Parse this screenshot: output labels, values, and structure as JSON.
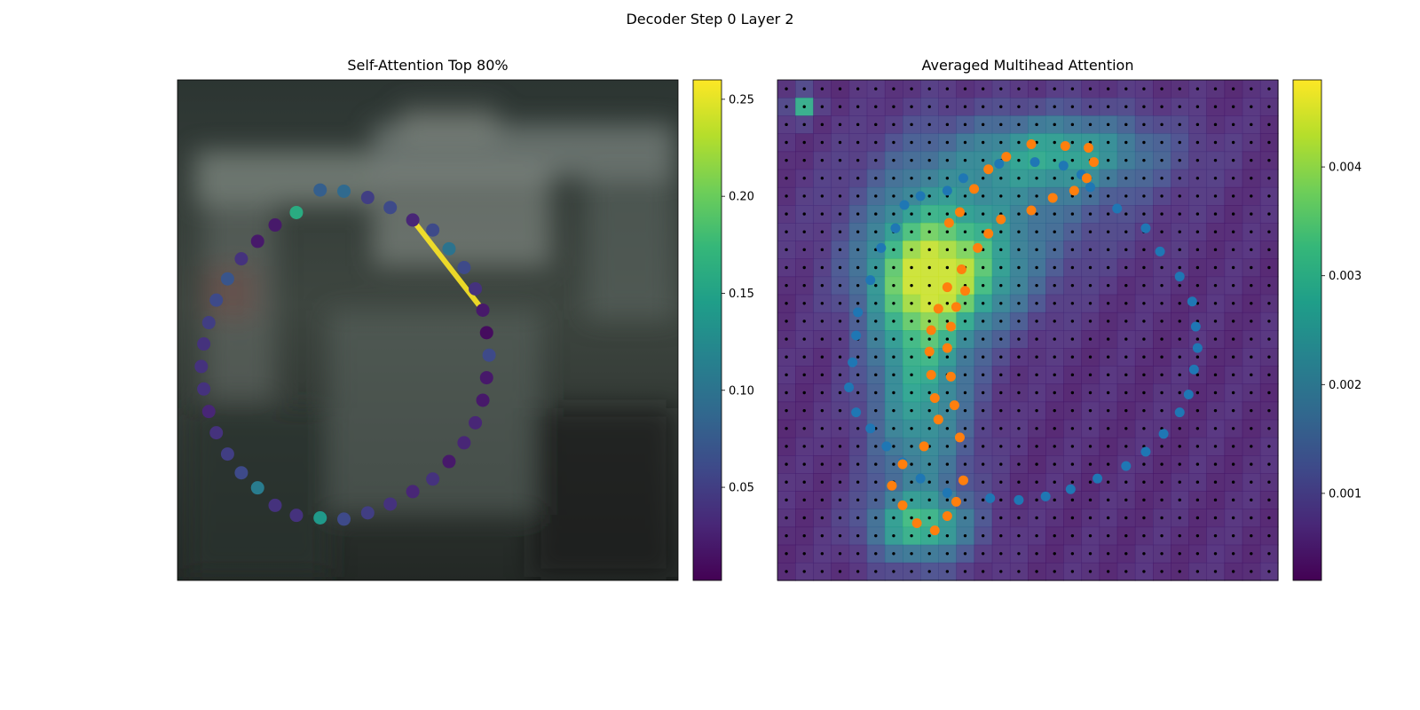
{
  "figure": {
    "title": "Decoder Step 0 Layer 2"
  },
  "colors": {
    "viridis": [
      "#440154",
      "#482777",
      "#3e4989",
      "#31688e",
      "#26828e",
      "#1f9e89",
      "#35b779",
      "#6ece58",
      "#b5de2b",
      "#fde725"
    ],
    "series_blue": "#1f77b4",
    "series_orange": "#ff7f0e",
    "grid_dot": "#000000"
  },
  "chart_data": [
    {
      "type": "scatter",
      "title": "Self-Attention Top 80%",
      "background": "blurred image (street scene)",
      "colormap": "viridis",
      "colorbar": {
        "range": [
          0.002,
          0.26
        ],
        "ticks": [
          0.05,
          0.1,
          0.15,
          0.2,
          0.25
        ],
        "tick_labels": [
          "0.05",
          "0.10",
          "0.15",
          "0.20",
          "0.25"
        ]
      },
      "highlight_segment": {
        "from_index": 9,
        "to_index": 4,
        "color": "#fde725"
      },
      "points": [
        {
          "x": 5.7,
          "y": 4.4,
          "v": 0.08
        },
        {
          "x": 6.65,
          "y": 4.45,
          "v": 0.09
        },
        {
          "x": 7.6,
          "y": 4.7,
          "v": 0.05
        },
        {
          "x": 8.5,
          "y": 5.1,
          "v": 0.06
        },
        {
          "x": 9.4,
          "y": 5.6,
          "v": 0.03
        },
        {
          "x": 10.2,
          "y": 6.0,
          "v": 0.06
        },
        {
          "x": 10.85,
          "y": 6.75,
          "v": 0.1
        },
        {
          "x": 11.45,
          "y": 7.5,
          "v": 0.06
        },
        {
          "x": 11.9,
          "y": 8.35,
          "v": 0.04
        },
        {
          "x": 12.2,
          "y": 9.2,
          "v": 0.02
        },
        {
          "x": 12.35,
          "y": 10.1,
          "v": 0.01
        },
        {
          "x": 12.45,
          "y": 11.0,
          "v": 0.06
        },
        {
          "x": 12.35,
          "y": 11.9,
          "v": 0.02
        },
        {
          "x": 12.2,
          "y": 12.8,
          "v": 0.02
        },
        {
          "x": 11.9,
          "y": 13.7,
          "v": 0.03
        },
        {
          "x": 11.45,
          "y": 14.5,
          "v": 0.03
        },
        {
          "x": 10.85,
          "y": 15.25,
          "v": 0.02
        },
        {
          "x": 10.2,
          "y": 15.95,
          "v": 0.04
        },
        {
          "x": 9.4,
          "y": 16.45,
          "v": 0.03
        },
        {
          "x": 8.5,
          "y": 16.95,
          "v": 0.04
        },
        {
          "x": 7.6,
          "y": 17.3,
          "v": 0.05
        },
        {
          "x": 6.65,
          "y": 17.55,
          "v": 0.06
        },
        {
          "x": 5.7,
          "y": 17.5,
          "v": 0.14
        },
        {
          "x": 4.75,
          "y": 17.4,
          "v": 0.04
        },
        {
          "x": 3.9,
          "y": 17.0,
          "v": 0.04
        },
        {
          "x": 3.2,
          "y": 16.3,
          "v": 0.11
        },
        {
          "x": 2.55,
          "y": 15.7,
          "v": 0.06
        },
        {
          "x": 2.0,
          "y": 14.95,
          "v": 0.05
        },
        {
          "x": 1.55,
          "y": 14.1,
          "v": 0.04
        },
        {
          "x": 1.25,
          "y": 13.25,
          "v": 0.03
        },
        {
          "x": 1.05,
          "y": 12.35,
          "v": 0.04
        },
        {
          "x": 0.95,
          "y": 11.45,
          "v": 0.04
        },
        {
          "x": 1.05,
          "y": 10.55,
          "v": 0.04
        },
        {
          "x": 1.25,
          "y": 9.7,
          "v": 0.05
        },
        {
          "x": 1.55,
          "y": 8.8,
          "v": 0.06
        },
        {
          "x": 2.0,
          "y": 7.95,
          "v": 0.07
        },
        {
          "x": 2.55,
          "y": 7.15,
          "v": 0.04
        },
        {
          "x": 3.2,
          "y": 6.45,
          "v": 0.02
        },
        {
          "x": 3.9,
          "y": 5.8,
          "v": 0.02
        },
        {
          "x": 4.75,
          "y": 5.3,
          "v": 0.16
        }
      ]
    },
    {
      "type": "heatmap",
      "title": "Averaged Multihead Attention",
      "colormap": "viridis",
      "grid": {
        "cols": 28,
        "rows": 28
      },
      "colorbar": {
        "range": [
          0.0002,
          0.0048
        ],
        "ticks": [
          0.001,
          0.002,
          0.003,
          0.004
        ],
        "tick_labels": [
          "0.001",
          "0.002",
          "0.003",
          "0.004"
        ]
      },
      "hotspots": [
        {
          "cx": 9.5,
          "cy": 11.0,
          "sx": 3.0,
          "sy": 2.2,
          "amp": 0.003
        },
        {
          "cx": 8.0,
          "cy": 16.0,
          "sx": 2.0,
          "sy": 6.0,
          "amp": 0.0024
        },
        {
          "cx": 8.0,
          "cy": 25.0,
          "sx": 2.0,
          "sy": 1.2,
          "amp": 0.0022
        },
        {
          "cx": 16.0,
          "cy": 4.0,
          "sx": 4.0,
          "sy": 1.5,
          "amp": 0.002
        },
        {
          "cx": 12.0,
          "cy": 7.0,
          "sx": 5.0,
          "sy": 2.5,
          "amp": 0.0012
        },
        {
          "cx": 1.5,
          "cy": 1.5,
          "sx": 0.5,
          "sy": 0.5,
          "amp": 0.0025
        }
      ],
      "series": [
        {
          "color": "#1f77b4",
          "points": [
            [
              12.4,
              4.7
            ],
            [
              14.4,
              4.6
            ],
            [
              16.0,
              4.8
            ],
            [
              17.0,
              5.3
            ],
            [
              17.5,
              6.0
            ],
            [
              19.0,
              7.2
            ],
            [
              20.6,
              8.3
            ],
            [
              21.4,
              9.6
            ],
            [
              22.5,
              11.0
            ],
            [
              23.2,
              12.4
            ],
            [
              23.4,
              13.8
            ],
            [
              23.5,
              15.0
            ],
            [
              23.3,
              16.2
            ],
            [
              23.0,
              17.6
            ],
            [
              22.5,
              18.6
            ],
            [
              21.6,
              19.8
            ],
            [
              20.6,
              20.8
            ],
            [
              19.5,
              21.6
            ],
            [
              17.9,
              22.3
            ],
            [
              16.4,
              22.9
            ],
            [
              15.0,
              23.3
            ],
            [
              13.5,
              23.5
            ],
            [
              11.9,
              23.4
            ],
            [
              9.5,
              23.1
            ],
            [
              8.0,
              22.3
            ],
            [
              7.0,
              21.4
            ],
            [
              6.1,
              20.5
            ],
            [
              5.2,
              19.5
            ],
            [
              4.4,
              18.6
            ],
            [
              4.0,
              17.2
            ],
            [
              4.2,
              15.8
            ],
            [
              4.4,
              14.3
            ],
            [
              4.5,
              13.0
            ],
            [
              5.2,
              11.2
            ],
            [
              5.8,
              9.4
            ],
            [
              6.6,
              8.3
            ],
            [
              7.1,
              7.0
            ],
            [
              8.0,
              6.5
            ],
            [
              9.5,
              6.2
            ],
            [
              10.4,
              5.5
            ]
          ]
        },
        {
          "color": "#ff7f0e",
          "points": [
            [
              9.6,
              8.0
            ],
            [
              10.2,
              7.4
            ],
            [
              11.0,
              6.1
            ],
            [
              11.8,
              5.0
            ],
            [
              12.8,
              4.3
            ],
            [
              14.2,
              3.6
            ],
            [
              16.1,
              3.7
            ],
            [
              17.4,
              3.8
            ],
            [
              17.7,
              4.6
            ],
            [
              17.3,
              5.5
            ],
            [
              16.6,
              6.2
            ],
            [
              15.4,
              6.6
            ],
            [
              14.2,
              7.3
            ],
            [
              12.5,
              7.8
            ],
            [
              11.8,
              8.6
            ],
            [
              11.2,
              9.4
            ],
            [
              10.3,
              10.6
            ],
            [
              9.5,
              11.6
            ],
            [
              9.0,
              12.8
            ],
            [
              8.6,
              14.0
            ],
            [
              8.5,
              15.2
            ],
            [
              8.6,
              16.5
            ],
            [
              8.8,
              17.8
            ],
            [
              9.0,
              19.0
            ],
            [
              8.2,
              20.5
            ],
            [
              7.0,
              21.5
            ],
            [
              6.4,
              22.7
            ],
            [
              7.0,
              23.8
            ],
            [
              7.8,
              24.8
            ],
            [
              8.8,
              25.2
            ],
            [
              9.5,
              24.4
            ],
            [
              10.0,
              23.6
            ],
            [
              10.4,
              22.4
            ],
            [
              10.2,
              20.0
            ],
            [
              9.9,
              18.2
            ],
            [
              9.7,
              16.6
            ],
            [
              9.5,
              15.0
            ],
            [
              9.7,
              13.8
            ],
            [
              10.0,
              12.7
            ],
            [
              10.5,
              11.8
            ]
          ]
        }
      ]
    }
  ]
}
